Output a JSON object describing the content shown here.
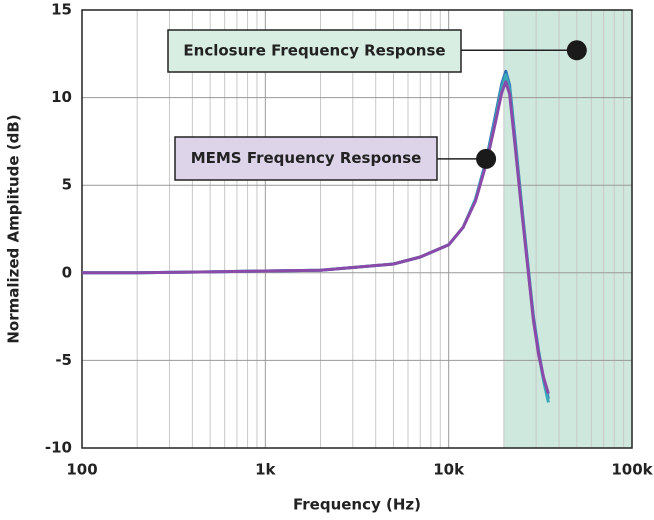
{
  "chart_data": {
    "type": "line",
    "xlabel": "Frequency (Hz)",
    "ylabel": "Normalized Amplitude (dB)",
    "log_x": true,
    "grid": true,
    "xlim": [
      100,
      100000
    ],
    "ylim": [
      -10,
      15
    ],
    "xticks": [
      100,
      {
        "value": 1000,
        "label": "1k"
      },
      {
        "value": 10000,
        "label": "10k"
      },
      {
        "value": 100000,
        "label": "100k"
      }
    ],
    "yticks": [
      15,
      10,
      5,
      0,
      -5,
      -10
    ],
    "shaded_region": [
      20000,
      100000
    ],
    "shaded_color": "#cfe8dd",
    "x": [
      100,
      200,
      500,
      1000,
      2000,
      3000,
      5000,
      7000,
      10000,
      12000,
      14000,
      16000,
      18000,
      19500,
      20500,
      21500,
      23000,
      25000,
      27000,
      29000,
      31000,
      33000,
      35000
    ],
    "series": [
      {
        "color": "#2d6fb5",
        "values": [
          0,
          0,
          0.05,
          0.1,
          0.15,
          0.3,
          0.5,
          0.9,
          1.6,
          2.6,
          4.2,
          6.4,
          9.0,
          10.8,
          11.5,
          10.7,
          7.7,
          3.9,
          0.5,
          -2.5,
          -4.5,
          -6.1,
          -7.2
        ]
      },
      {
        "color": "#3aa8b8",
        "values": [
          0,
          0,
          0.05,
          0.1,
          0.15,
          0.3,
          0.5,
          0.9,
          1.6,
          2.6,
          4.2,
          6.3,
          8.8,
          10.6,
          11.3,
          10.5,
          7.5,
          3.8,
          0.4,
          -2.6,
          -4.6,
          -6.2,
          -7.4
        ]
      },
      {
        "color": "#8a4aa8",
        "values": [
          0,
          0,
          0.05,
          0.1,
          0.15,
          0.3,
          0.5,
          0.9,
          1.6,
          2.6,
          4.1,
          6.2,
          8.6,
          10.3,
          10.9,
          10.2,
          7.3,
          3.6,
          0.3,
          -2.7,
          -4.7,
          -6.0,
          -6.9
        ]
      }
    ],
    "annotations": [
      {
        "text": "Enclosure Frequency Response",
        "x": 50000,
        "y": 12.7,
        "color": "#d8eee3"
      },
      {
        "text": "MEMS Frequency Response",
        "x": 16000,
        "y": 6.5,
        "color": "#ddd4e9"
      }
    ]
  }
}
